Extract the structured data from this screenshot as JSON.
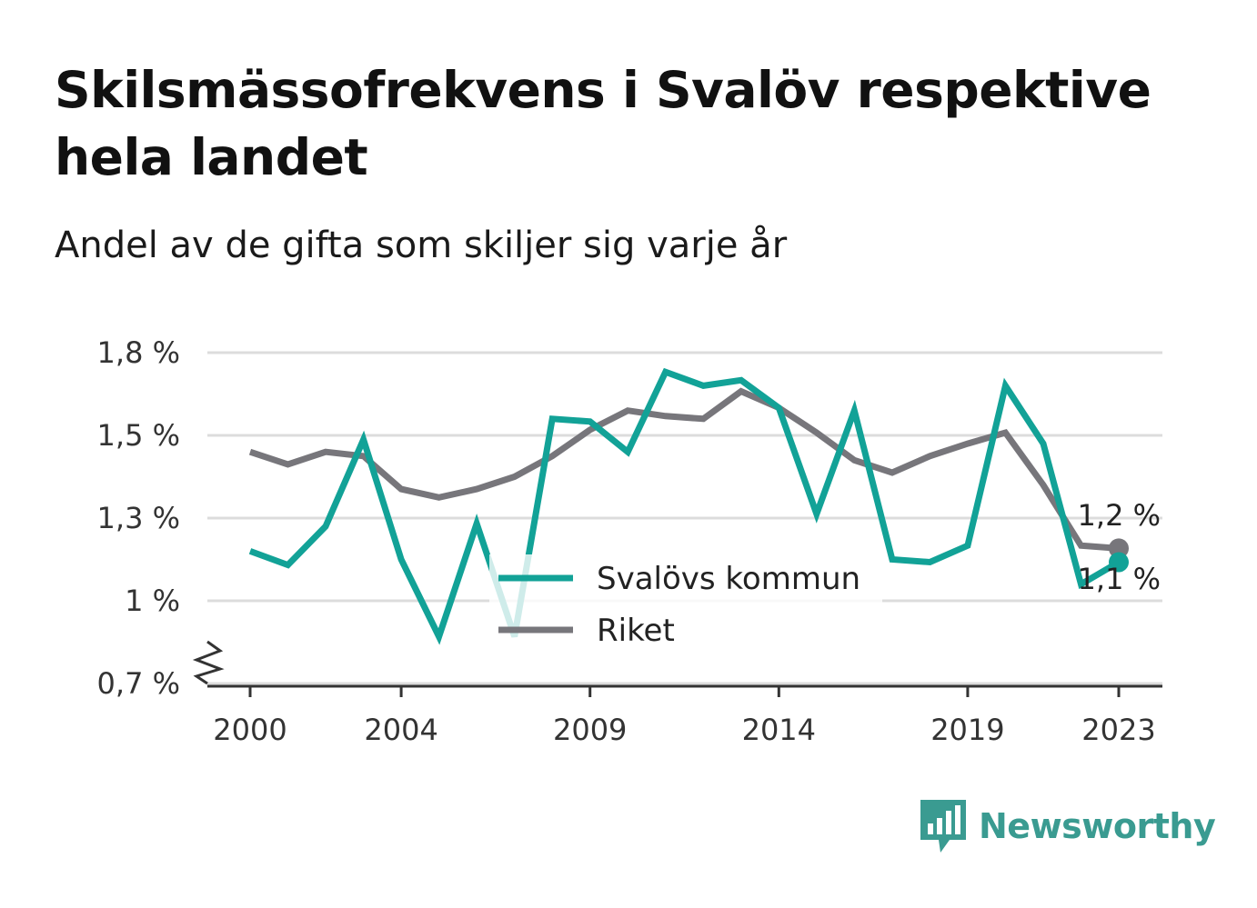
{
  "title": "Skilsmässofrekvens i Svalöv respektive hela landet",
  "subtitle": "Andel av de gifta som skiljer sig varje år",
  "brand": {
    "name": "Newsworthy",
    "icon": "bar-chart-speech-icon",
    "color": "#3a9b91"
  },
  "chart_data": {
    "type": "line",
    "title": "Skilsmässofrekvens i Svalöv respektive hela landet",
    "subtitle": "Andel av de gifta som skiljer sig varje år",
    "xlabel": "",
    "ylabel": "",
    "x": [
      2000,
      2001,
      2002,
      2003,
      2004,
      2005,
      2006,
      2007,
      2008,
      2009,
      2010,
      2011,
      2012,
      2013,
      2014,
      2015,
      2016,
      2017,
      2018,
      2019,
      2020,
      2021,
      2022,
      2023
    ],
    "x_ticks": [
      2000,
      2004,
      2009,
      2014,
      2019,
      2023
    ],
    "x_tick_labels": [
      "2000",
      "2004",
      "2009",
      "2014",
      "2019",
      "2023"
    ],
    "ylim": [
      0.7,
      1.8
    ],
    "y_ticks": [
      0.7,
      1.0,
      1.3,
      1.5,
      1.8
    ],
    "y_tick_labels": [
      "0,7 %",
      "1 %",
      "1,3 %",
      "1,5 %",
      "1,8 %"
    ],
    "y_axis_break": true,
    "grid": true,
    "legend_position": "center",
    "series": [
      {
        "name": "Svalövs kommun",
        "color": "#12a297",
        "values": [
          1.18,
          1.13,
          1.27,
          1.49,
          1.15,
          0.87,
          1.28,
          0.87,
          1.56,
          1.55,
          1.46,
          1.73,
          1.68,
          1.7,
          1.6,
          1.31,
          1.59,
          1.15,
          1.14,
          1.2,
          1.68,
          1.48,
          1.06,
          1.14
        ],
        "end_label": "1,1 %"
      },
      {
        "name": "Riket",
        "color": "#77767b",
        "values": [
          1.46,
          1.43,
          1.46,
          1.45,
          1.37,
          1.35,
          1.37,
          1.4,
          1.45,
          1.52,
          1.59,
          1.57,
          1.56,
          1.66,
          1.6,
          1.51,
          1.44,
          1.41,
          1.45,
          1.48,
          1.51,
          1.38,
          1.2,
          1.19
        ],
        "end_label": "1,2 %"
      }
    ]
  }
}
